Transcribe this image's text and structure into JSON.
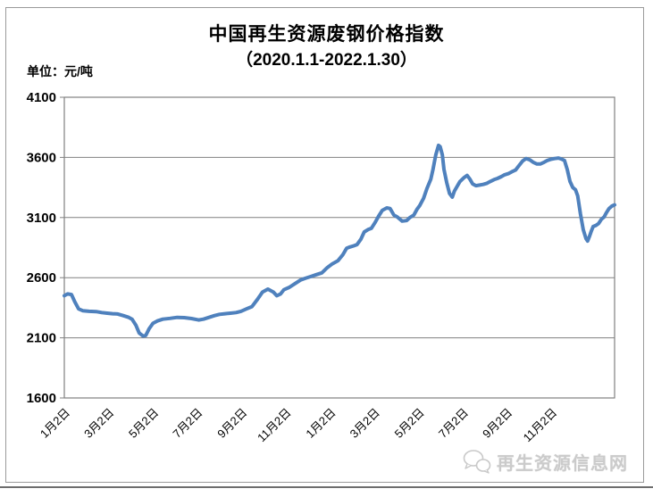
{
  "header": {
    "title": "中国再生资源废钢价格指数",
    "subtitle": "（2020.1.1-2022.1.30）",
    "unit_label": "单位：元/吨"
  },
  "watermark": {
    "icon": "wechat-icon",
    "text": "再生资源信息网"
  },
  "colors": {
    "line": "#4f81bd",
    "grid": "#808080",
    "plot_border": "#808080",
    "outer_border": "#9a9a9a",
    "text": "#000000",
    "watermark": "#cbcbcb"
  },
  "chart_data": {
    "type": "line",
    "title": "中国再生资源废钢价格指数",
    "subtitle": "（2020.1.1-2022.1.30）",
    "ylabel": "元/吨",
    "ylim": [
      1600,
      4100
    ],
    "y_ticks": [
      1600,
      2100,
      2600,
      3100,
      3600,
      4100
    ],
    "x_tick_labels": [
      "1月2日",
      "3月2日",
      "5月2日",
      "7月2日",
      "9月2日",
      "11月2日",
      "1月2日",
      "3月2日",
      "5月2日",
      "7月2日",
      "9月2日",
      "11月2日"
    ],
    "x_tick_positions": [
      0.0,
      0.08,
      0.161,
      0.241,
      0.322,
      0.402,
      0.483,
      0.563,
      0.644,
      0.724,
      0.804,
      0.885
    ],
    "grid": true,
    "legend": "none",
    "series": [
      {
        "color": "#4f81bd",
        "points": [
          [
            0.0,
            2450
          ],
          [
            0.006,
            2465
          ],
          [
            0.013,
            2460
          ],
          [
            0.019,
            2400
          ],
          [
            0.026,
            2340
          ],
          [
            0.034,
            2325
          ],
          [
            0.045,
            2320
          ],
          [
            0.058,
            2318
          ],
          [
            0.068,
            2310
          ],
          [
            0.078,
            2305
          ],
          [
            0.088,
            2300
          ],
          [
            0.097,
            2298
          ],
          [
            0.107,
            2285
          ],
          [
            0.117,
            2270
          ],
          [
            0.123,
            2255
          ],
          [
            0.13,
            2205
          ],
          [
            0.136,
            2140
          ],
          [
            0.143,
            2115
          ],
          [
            0.148,
            2120
          ],
          [
            0.154,
            2175
          ],
          [
            0.161,
            2220
          ],
          [
            0.169,
            2240
          ],
          [
            0.179,
            2255
          ],
          [
            0.192,
            2262
          ],
          [
            0.205,
            2270
          ],
          [
            0.218,
            2268
          ],
          [
            0.231,
            2260
          ],
          [
            0.244,
            2248
          ],
          [
            0.253,
            2255
          ],
          [
            0.263,
            2270
          ],
          [
            0.273,
            2285
          ],
          [
            0.282,
            2295
          ],
          [
            0.292,
            2300
          ],
          [
            0.302,
            2305
          ],
          [
            0.312,
            2310
          ],
          [
            0.321,
            2320
          ],
          [
            0.331,
            2340
          ],
          [
            0.341,
            2360
          ],
          [
            0.351,
            2420
          ],
          [
            0.36,
            2480
          ],
          [
            0.37,
            2505
          ],
          [
            0.38,
            2480
          ],
          [
            0.386,
            2450
          ],
          [
            0.393,
            2465
          ],
          [
            0.399,
            2500
          ],
          [
            0.409,
            2520
          ],
          [
            0.419,
            2550
          ],
          [
            0.429,
            2580
          ],
          [
            0.438,
            2595
          ],
          [
            0.448,
            2610
          ],
          [
            0.458,
            2625
          ],
          [
            0.468,
            2640
          ],
          [
            0.477,
            2680
          ],
          [
            0.487,
            2715
          ],
          [
            0.497,
            2740
          ],
          [
            0.506,
            2790
          ],
          [
            0.513,
            2845
          ],
          [
            0.519,
            2855
          ],
          [
            0.526,
            2865
          ],
          [
            0.532,
            2875
          ],
          [
            0.539,
            2920
          ],
          [
            0.545,
            2980
          ],
          [
            0.552,
            3000
          ],
          [
            0.558,
            3010
          ],
          [
            0.565,
            3060
          ],
          [
            0.571,
            3110
          ],
          [
            0.578,
            3160
          ],
          [
            0.586,
            3180
          ],
          [
            0.592,
            3175
          ],
          [
            0.599,
            3120
          ],
          [
            0.605,
            3105
          ],
          [
            0.614,
            3070
          ],
          [
            0.622,
            3075
          ],
          [
            0.628,
            3100
          ],
          [
            0.635,
            3120
          ],
          [
            0.641,
            3170
          ],
          [
            0.646,
            3200
          ],
          [
            0.653,
            3260
          ],
          [
            0.659,
            3340
          ],
          [
            0.666,
            3420
          ],
          [
            0.67,
            3500
          ],
          [
            0.675,
            3620
          ],
          [
            0.68,
            3700
          ],
          [
            0.683,
            3690
          ],
          [
            0.687,
            3620
          ],
          [
            0.69,
            3500
          ],
          [
            0.695,
            3390
          ],
          [
            0.7,
            3300
          ],
          [
            0.705,
            3270
          ],
          [
            0.709,
            3320
          ],
          [
            0.714,
            3360
          ],
          [
            0.719,
            3400
          ],
          [
            0.726,
            3430
          ],
          [
            0.732,
            3450
          ],
          [
            0.737,
            3420
          ],
          [
            0.742,
            3380
          ],
          [
            0.748,
            3365
          ],
          [
            0.755,
            3370
          ],
          [
            0.761,
            3375
          ],
          [
            0.768,
            3385
          ],
          [
            0.774,
            3400
          ],
          [
            0.781,
            3415
          ],
          [
            0.787,
            3425
          ],
          [
            0.794,
            3440
          ],
          [
            0.8,
            3455
          ],
          [
            0.807,
            3465
          ],
          [
            0.813,
            3480
          ],
          [
            0.82,
            3495
          ],
          [
            0.826,
            3530
          ],
          [
            0.833,
            3570
          ],
          [
            0.839,
            3590
          ],
          [
            0.846,
            3580
          ],
          [
            0.852,
            3560
          ],
          [
            0.859,
            3545
          ],
          [
            0.865,
            3545
          ],
          [
            0.872,
            3560
          ],
          [
            0.878,
            3575
          ],
          [
            0.885,
            3585
          ],
          [
            0.891,
            3590
          ],
          [
            0.898,
            3595
          ],
          [
            0.904,
            3585
          ],
          [
            0.909,
            3575
          ],
          [
            0.914,
            3500
          ],
          [
            0.919,
            3400
          ],
          [
            0.924,
            3350
          ],
          [
            0.929,
            3330
          ],
          [
            0.933,
            3280
          ],
          [
            0.938,
            3130
          ],
          [
            0.943,
            3000
          ],
          [
            0.948,
            2925
          ],
          [
            0.951,
            2905
          ],
          [
            0.954,
            2940
          ],
          [
            0.958,
            2990
          ],
          [
            0.961,
            3025
          ],
          [
            0.966,
            3035
          ],
          [
            0.971,
            3050
          ],
          [
            0.976,
            3085
          ],
          [
            0.981,
            3105
          ],
          [
            0.985,
            3140
          ],
          [
            0.99,
            3175
          ],
          [
            0.995,
            3195
          ],
          [
            1.0,
            3205
          ]
        ]
      }
    ]
  }
}
